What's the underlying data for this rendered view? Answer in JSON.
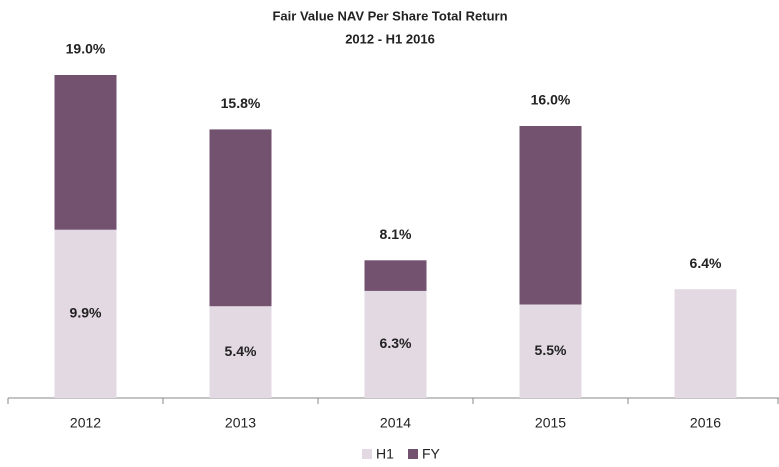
{
  "chart_data": {
    "type": "bar",
    "title": "Fair Value  NAV Per Share Total Return",
    "subtitle": "2012 - H1 2016",
    "categories": [
      "2012",
      "2013",
      "2014",
      "2015",
      "2016"
    ],
    "series": [
      {
        "name": "FY",
        "color": "#72526f",
        "values": [
          19.0,
          15.8,
          8.1,
          16.0,
          null
        ],
        "value_labels": [
          "19.0%",
          "15.8%",
          "8.1%",
          "16.0%",
          null
        ]
      },
      {
        "name": "H1",
        "color": "#e3d9e3",
        "values": [
          9.9,
          5.4,
          6.3,
          5.5,
          6.4
        ],
        "value_labels": [
          "9.9%",
          "5.4%",
          "6.3%",
          "5.5%",
          "6.4%"
        ]
      }
    ],
    "legend": "bottom"
  }
}
